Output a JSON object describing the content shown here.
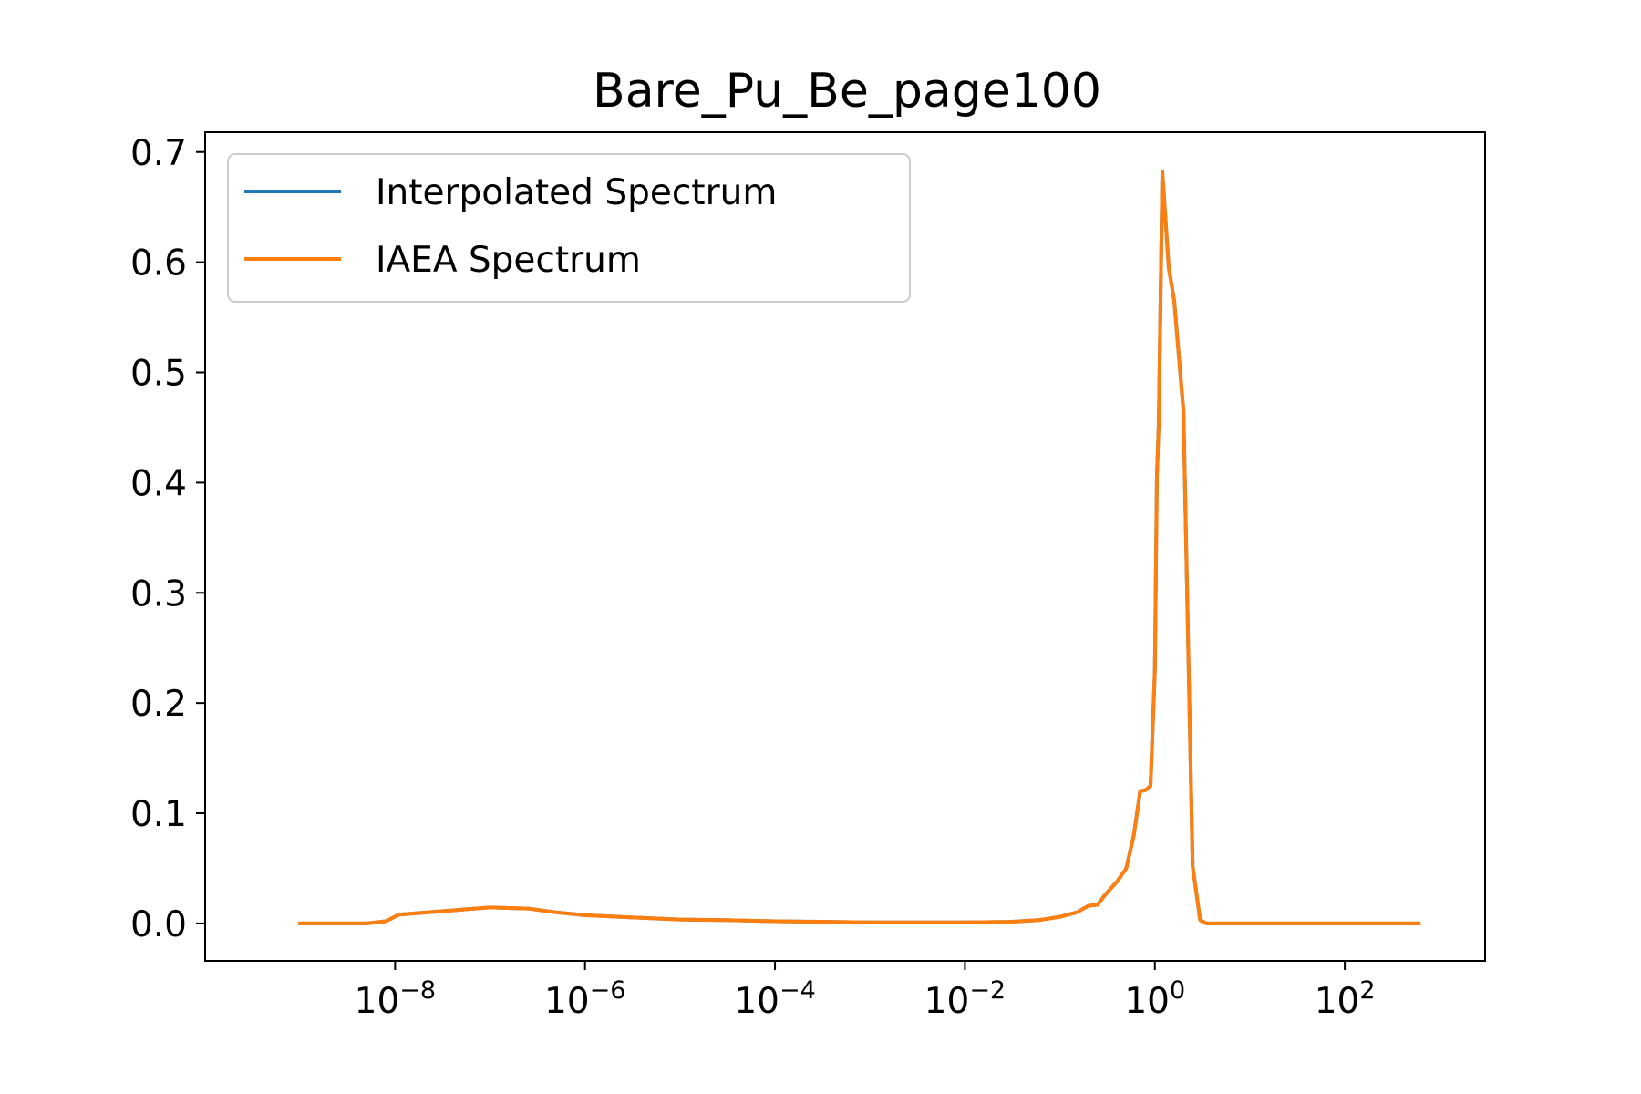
{
  "chart_data": {
    "type": "line",
    "title": "Bare_Pu_Be_page100",
    "xlabel": "",
    "ylabel": "",
    "xscale": "log",
    "xlim": [
      1e-10,
      3000
    ],
    "ylim": [
      -0.034,
      0.718
    ],
    "grid": false,
    "legend_position": "top-left",
    "x_ticks": [
      {
        "value": 1e-08,
        "base": "10",
        "exp": "−8"
      },
      {
        "value": 1e-06,
        "base": "10",
        "exp": "−6"
      },
      {
        "value": 0.0001,
        "base": "10",
        "exp": "−4"
      },
      {
        "value": 0.01,
        "base": "10",
        "exp": "−2"
      },
      {
        "value": 1,
        "base": "10",
        "exp": "0"
      },
      {
        "value": 100,
        "base": "10",
        "exp": "2"
      }
    ],
    "y_ticks": [
      {
        "value": 0.0,
        "label": "0.0"
      },
      {
        "value": 0.1,
        "label": "0.1"
      },
      {
        "value": 0.2,
        "label": "0.2"
      },
      {
        "value": 0.3,
        "label": "0.3"
      },
      {
        "value": 0.4,
        "label": "0.4"
      },
      {
        "value": 0.5,
        "label": "0.5"
      },
      {
        "value": 0.6,
        "label": "0.6"
      },
      {
        "value": 0.7,
        "label": "0.7"
      }
    ],
    "series": [
      {
        "name": "Interpolated Spectrum",
        "color": "#1f77b4",
        "x": [
          1e-09,
          5e-09,
          8e-09,
          1.1e-08,
          3e-08,
          1e-07,
          2.5e-07,
          5e-07,
          1e-06,
          3e-06,
          1e-05,
          3e-05,
          0.0001,
          0.001,
          0.01,
          0.03,
          0.06,
          0.1,
          0.15,
          0.2,
          0.25,
          0.3,
          0.4,
          0.5,
          0.6,
          0.7,
          0.8,
          0.9,
          1.0,
          1.05,
          1.1,
          1.2,
          1.4,
          1.6,
          2.0,
          2.5,
          3.0,
          3.5,
          4.0,
          5.0,
          6.0,
          6.5,
          8.0,
          9.0,
          10.0,
          15,
          30,
          100,
          300,
          600
        ],
        "y": [
          0.0,
          0.0,
          0.002,
          0.008,
          0.011,
          0.0145,
          0.0135,
          0.01,
          0.0075,
          0.0055,
          0.0035,
          0.003,
          0.002,
          0.001,
          0.001,
          0.0015,
          0.003,
          0.006,
          0.01,
          0.016,
          0.017,
          0.026,
          0.038,
          0.05,
          0.08,
          0.12,
          0.121,
          0.125,
          0.23,
          0.405,
          0.455,
          0.682,
          0.595,
          0.565,
          0.465,
          0.052,
          0.003,
          0.0,
          0.0,
          0.0,
          0.0,
          0.0,
          0.0,
          0.0,
          0.0,
          0.0,
          0.0,
          0.0,
          0.0,
          0.0
        ]
      },
      {
        "name": "IAEA Spectrum",
        "color": "#ff7f0e",
        "x": [
          1e-09,
          5e-09,
          8e-09,
          1.1e-08,
          3e-08,
          1e-07,
          2.5e-07,
          5e-07,
          1e-06,
          3e-06,
          1e-05,
          3e-05,
          0.0001,
          0.001,
          0.01,
          0.03,
          0.06,
          0.1,
          0.15,
          0.2,
          0.25,
          0.3,
          0.4,
          0.5,
          0.6,
          0.7,
          0.8,
          0.9,
          1.0,
          1.05,
          1.1,
          1.2,
          1.4,
          1.6,
          2.0,
          2.5,
          3.0,
          3.5,
          4.0,
          5.0,
          6.0,
          6.5,
          8.0,
          9.0,
          10.0,
          15,
          30,
          100,
          300,
          600
        ],
        "y": [
          0.0,
          0.0,
          0.002,
          0.008,
          0.011,
          0.0145,
          0.0135,
          0.01,
          0.0075,
          0.0055,
          0.0035,
          0.003,
          0.002,
          0.001,
          0.001,
          0.0015,
          0.003,
          0.006,
          0.01,
          0.016,
          0.017,
          0.026,
          0.038,
          0.05,
          0.08,
          0.12,
          0.121,
          0.125,
          0.23,
          0.405,
          0.455,
          0.682,
          0.595,
          0.565,
          0.465,
          0.052,
          0.003,
          0.0,
          0.0,
          0.0,
          0.0,
          0.0,
          0.0,
          0.0,
          0.0,
          0.0,
          0.0,
          0.0,
          0.0,
          0.0
        ]
      }
    ]
  }
}
